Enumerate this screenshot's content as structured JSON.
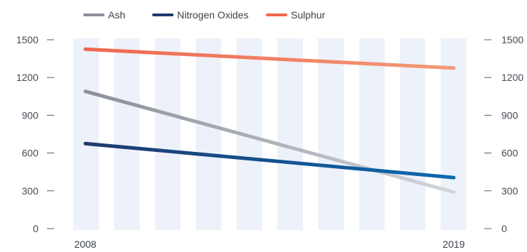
{
  "chart_data": {
    "type": "line",
    "x": [
      "2008",
      "2019"
    ],
    "x_tick_labels": [
      "2008",
      "2019"
    ],
    "ylim": [
      0,
      1500
    ],
    "y_ticks": [
      0,
      300,
      600,
      900,
      1200,
      1500
    ],
    "y_tick_labels": [
      "0",
      "300",
      "600",
      "900",
      "1200",
      "1500"
    ],
    "legend_position": "top-left",
    "grid": false,
    "background_columns": true,
    "series": [
      {
        "name": "Ash",
        "values": [
          1090,
          290
        ],
        "color_start": "#8a8f98",
        "color_end": "#d2d5da"
      },
      {
        "name": "Nitrogen Oxides",
        "values": [
          675,
          405
        ],
        "color_start": "#1f3a6d",
        "color_end": "#0a69b0"
      },
      {
        "name": "Sulphur",
        "values": [
          1425,
          1275
        ],
        "color_start": "#f0674e",
        "color_end": "#f29a78"
      }
    ]
  }
}
